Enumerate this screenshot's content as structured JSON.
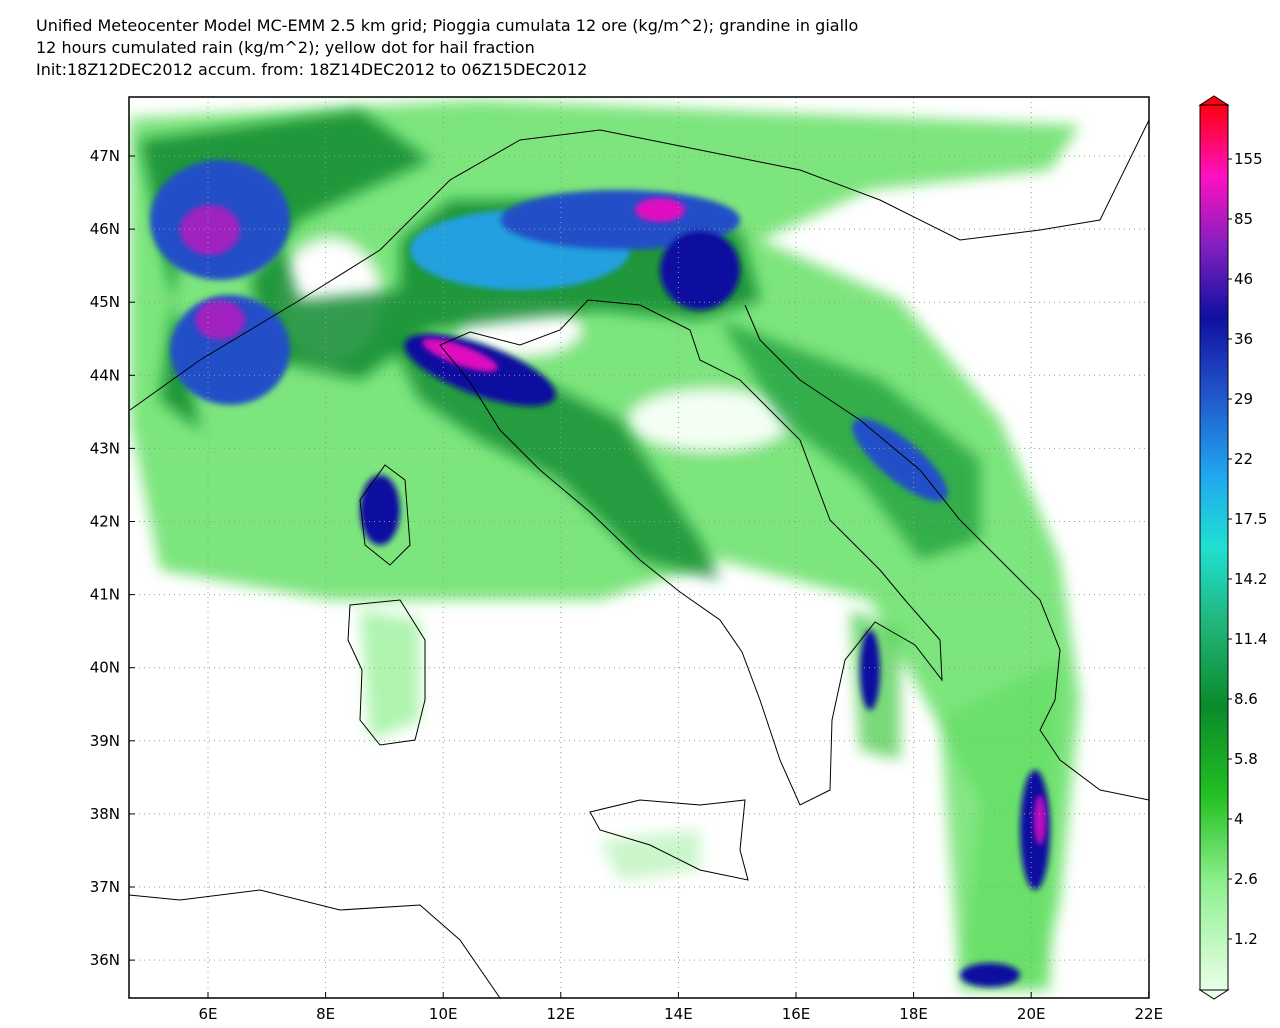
{
  "header": {
    "lines": [
      "Unified Meteocenter Model MC-EMM 2.5 km grid; Pioggia cumulata 12 ore (kg/m^2); grandine in giallo",
      "12 hours cumulated rain (kg/m^2); yellow dot for hail fraction",
      "Init:18Z12DEC2012 accum. from: 18Z14DEC2012 to 06Z15DEC2012"
    ]
  },
  "map": {
    "lon_labels": [
      "6E",
      "8E",
      "10E",
      "12E",
      "14E",
      "16E",
      "18E",
      "20E",
      "22E"
    ],
    "lat_labels": [
      "47N",
      "46N",
      "45N",
      "44N",
      "43N",
      "42N",
      "41N",
      "40N",
      "39N",
      "38N",
      "37N",
      "36N"
    ]
  },
  "colorbar": {
    "labels": [
      "155",
      "85",
      "46",
      "36",
      "29",
      "22",
      "17.5",
      "14.2",
      "11.4",
      "8.6",
      "5.8",
      "4",
      "2.6",
      "1.2"
    ]
  }
}
